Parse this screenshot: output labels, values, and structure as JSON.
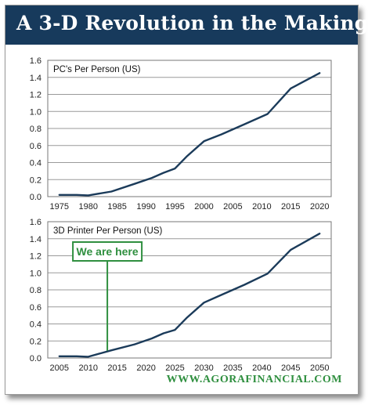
{
  "header": {
    "title": "A 3-D Revolution in the Making"
  },
  "footer": {
    "website": "WWW.AGORAFINANCIAL.COM"
  },
  "colors": {
    "title_bar": "#173a5c",
    "series_line": "#1b3b5a",
    "annotation": "#2f8f3f"
  },
  "chart_data": [
    {
      "type": "line",
      "title": "PC's Per Person (US)",
      "xlabel": "",
      "ylabel": "",
      "xlim": [
        1973,
        2022
      ],
      "ylim": [
        0,
        1.6
      ],
      "x_ticks": [
        1975,
        1980,
        1985,
        1990,
        1995,
        2000,
        2005,
        2010,
        2015,
        2020
      ],
      "y_ticks": [
        0,
        0.2,
        0.4,
        0.6,
        0.8,
        1.0,
        1.2,
        1.4,
        1.6
      ],
      "y_tick_labels": [
        "0.0",
        "0.2",
        "0.4",
        "0.6",
        "0.8",
        "1.0",
        "1.2",
        "1.4",
        "1.6"
      ],
      "grid": true,
      "series": [
        {
          "x": [
            1975,
            1978,
            1980,
            1984,
            1988,
            1991,
            1993,
            1995,
            1997,
            2000,
            2003,
            2007,
            2011,
            2015,
            2020
          ],
          "y": [
            0.02,
            0.02,
            0.015,
            0.06,
            0.15,
            0.22,
            0.28,
            0.33,
            0.47,
            0.65,
            0.73,
            0.85,
            0.97,
            1.27,
            1.45
          ]
        }
      ]
    },
    {
      "type": "line",
      "title": "3D Printer Per Person (US)",
      "xlabel": "",
      "ylabel": "",
      "xlim": [
        2003,
        2052
      ],
      "ylim": [
        0,
        1.6
      ],
      "x_ticks": [
        2005,
        2010,
        2015,
        2020,
        2025,
        2030,
        2035,
        2040,
        2045,
        2050
      ],
      "y_ticks": [
        0,
        0.2,
        0.4,
        0.6,
        0.8,
        1.0,
        1.2,
        1.4,
        1.6
      ],
      "y_tick_labels": [
        "0.0",
        "0.2",
        "0.4",
        "0.6",
        "0.8",
        "1.0",
        "1.2",
        "1.4",
        "1.6"
      ],
      "grid": true,
      "annotation": {
        "text": "We are here",
        "x": 2013.3
      },
      "series": [
        {
          "x": [
            2005,
            2008,
            2010,
            2014,
            2018,
            2021,
            2023,
            2025,
            2027,
            2030,
            2033,
            2037,
            2041,
            2045,
            2050
          ],
          "y": [
            0.02,
            0.02,
            0.015,
            0.09,
            0.16,
            0.23,
            0.29,
            0.33,
            0.47,
            0.65,
            0.74,
            0.86,
            0.99,
            1.27,
            1.46
          ]
        }
      ]
    }
  ]
}
